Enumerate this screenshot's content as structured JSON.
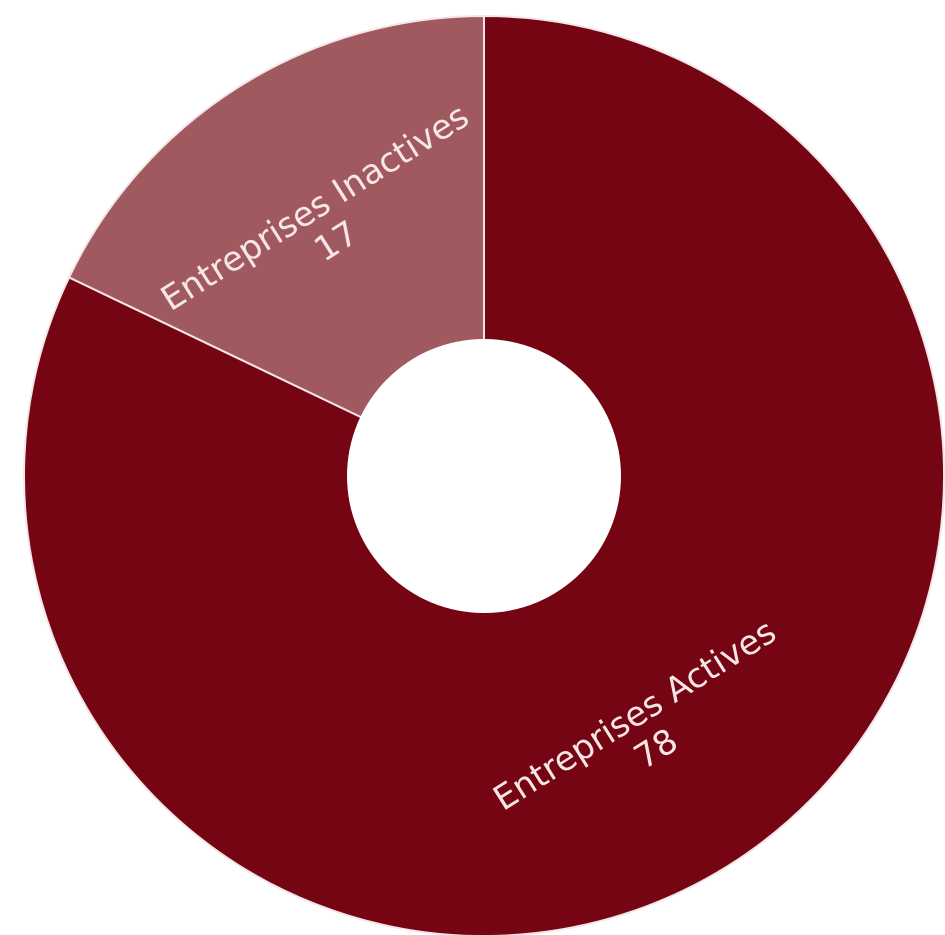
{
  "chart_data": {
    "type": "donut",
    "title": "",
    "slices": [
      {
        "label": "Entreprises Actives",
        "value": 78,
        "value_label": "78",
        "color": "#750513"
      },
      {
        "label": "Entreprises Inactives",
        "value": 17,
        "value_label": "17",
        "color": "#a15960"
      }
    ],
    "start_angle_deg": 0,
    "direction": "clockwise",
    "legend": "none",
    "hole_color": "#ffffff"
  }
}
